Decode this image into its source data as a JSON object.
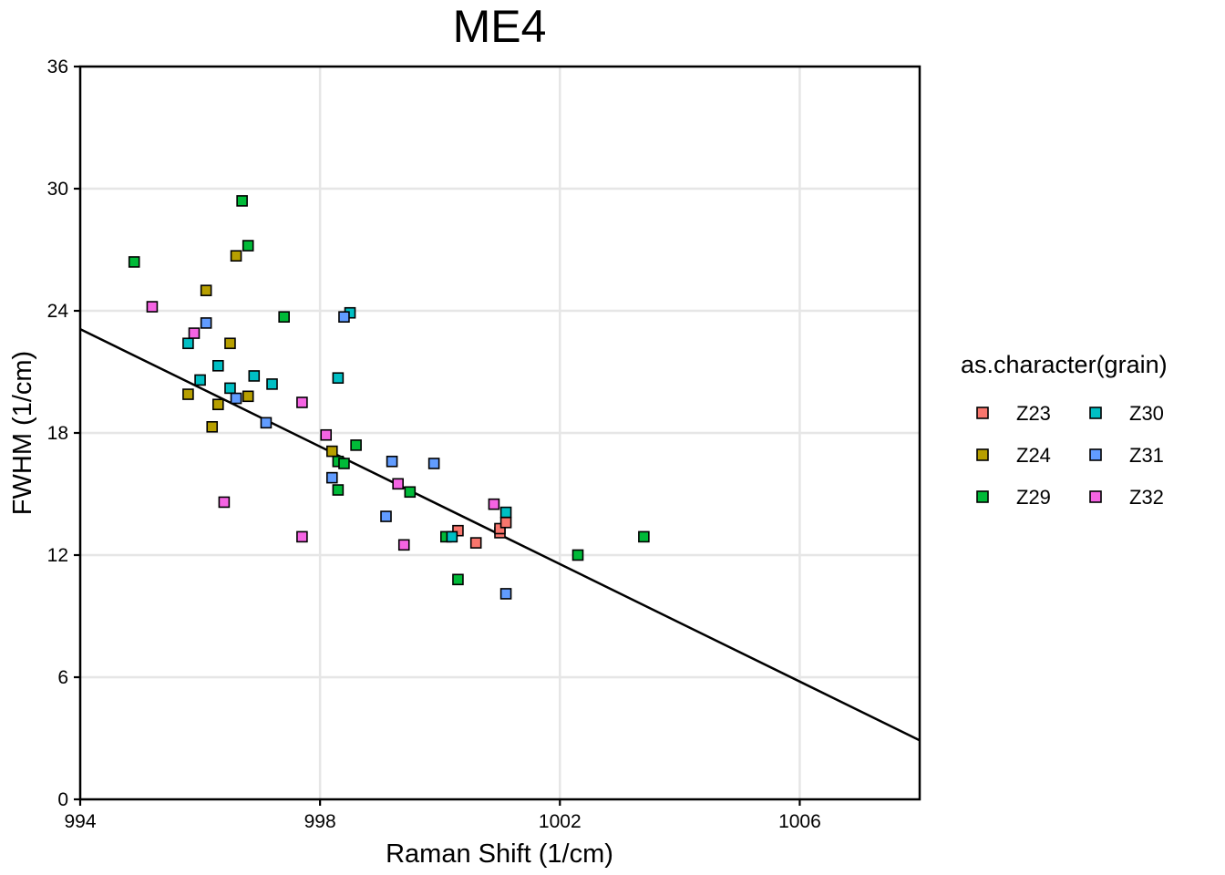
{
  "chart_data": {
    "type": "scatter",
    "title": "ME4",
    "xlabel": "Raman Shift (1/cm)",
    "ylabel": "FWHM (1/cm)",
    "xlim": [
      994,
      1008
    ],
    "ylim": [
      0,
      36
    ],
    "xticks": [
      994,
      998,
      1002,
      1006
    ],
    "yticks": [
      0,
      6,
      12,
      18,
      24,
      30,
      36
    ],
    "grid": true,
    "legend_title": "as.character(grain)",
    "legend_position": "right",
    "trendline": {
      "type": "linear",
      "points": [
        [
          994,
          23.1
        ],
        [
          1008,
          2.9
        ]
      ]
    },
    "series": [
      {
        "name": "Z23",
        "color": "#F8766D",
        "points": [
          [
            1000.3,
            13.2
          ],
          [
            1000.6,
            12.6
          ],
          [
            1001.0,
            13.1
          ],
          [
            1001.0,
            13.3
          ],
          [
            1001.1,
            13.6
          ]
        ]
      },
      {
        "name": "Z24",
        "color": "#B79F00",
        "points": [
          [
            996.6,
            26.7
          ],
          [
            996.1,
            25.0
          ],
          [
            996.5,
            22.4
          ],
          [
            995.8,
            19.9
          ],
          [
            996.3,
            19.4
          ],
          [
            996.8,
            19.8
          ],
          [
            996.2,
            18.3
          ],
          [
            998.2,
            17.1
          ]
        ]
      },
      {
        "name": "Z29",
        "color": "#00BA38",
        "points": [
          [
            996.7,
            29.4
          ],
          [
            996.8,
            27.2
          ],
          [
            994.9,
            26.4
          ],
          [
            997.4,
            23.7
          ],
          [
            998.6,
            17.4
          ],
          [
            998.3,
            16.6
          ],
          [
            998.4,
            16.5
          ],
          [
            998.3,
            15.2
          ],
          [
            999.5,
            15.1
          ],
          [
            1000.1,
            12.9
          ],
          [
            1000.3,
            10.8
          ],
          [
            1002.3,
            12.0
          ],
          [
            1003.4,
            12.9
          ]
        ]
      },
      {
        "name": "Z30",
        "color": "#00BFC4",
        "points": [
          [
            998.5,
            23.9
          ],
          [
            995.8,
            22.4
          ],
          [
            996.3,
            21.3
          ],
          [
            996.0,
            20.6
          ],
          [
            996.9,
            20.8
          ],
          [
            997.2,
            20.4
          ],
          [
            996.5,
            20.2
          ],
          [
            998.3,
            20.7
          ],
          [
            1001.1,
            14.1
          ],
          [
            1000.2,
            12.9
          ]
        ]
      },
      {
        "name": "Z31",
        "color": "#619CFF",
        "points": [
          [
            998.4,
            23.7
          ],
          [
            996.1,
            23.4
          ],
          [
            996.6,
            19.7
          ],
          [
            997.1,
            18.5
          ],
          [
            998.2,
            15.8
          ],
          [
            999.2,
            16.6
          ],
          [
            999.9,
            16.5
          ],
          [
            999.1,
            13.9
          ],
          [
            1001.1,
            10.1
          ]
        ]
      },
      {
        "name": "Z32",
        "color": "#F564E3",
        "points": [
          [
            995.2,
            24.2
          ],
          [
            995.9,
            22.9
          ],
          [
            997.7,
            19.5
          ],
          [
            998.1,
            17.9
          ],
          [
            999.3,
            15.5
          ],
          [
            1000.9,
            14.5
          ],
          [
            996.4,
            14.6
          ],
          [
            997.7,
            12.9
          ],
          [
            999.4,
            12.5
          ]
        ]
      }
    ]
  }
}
